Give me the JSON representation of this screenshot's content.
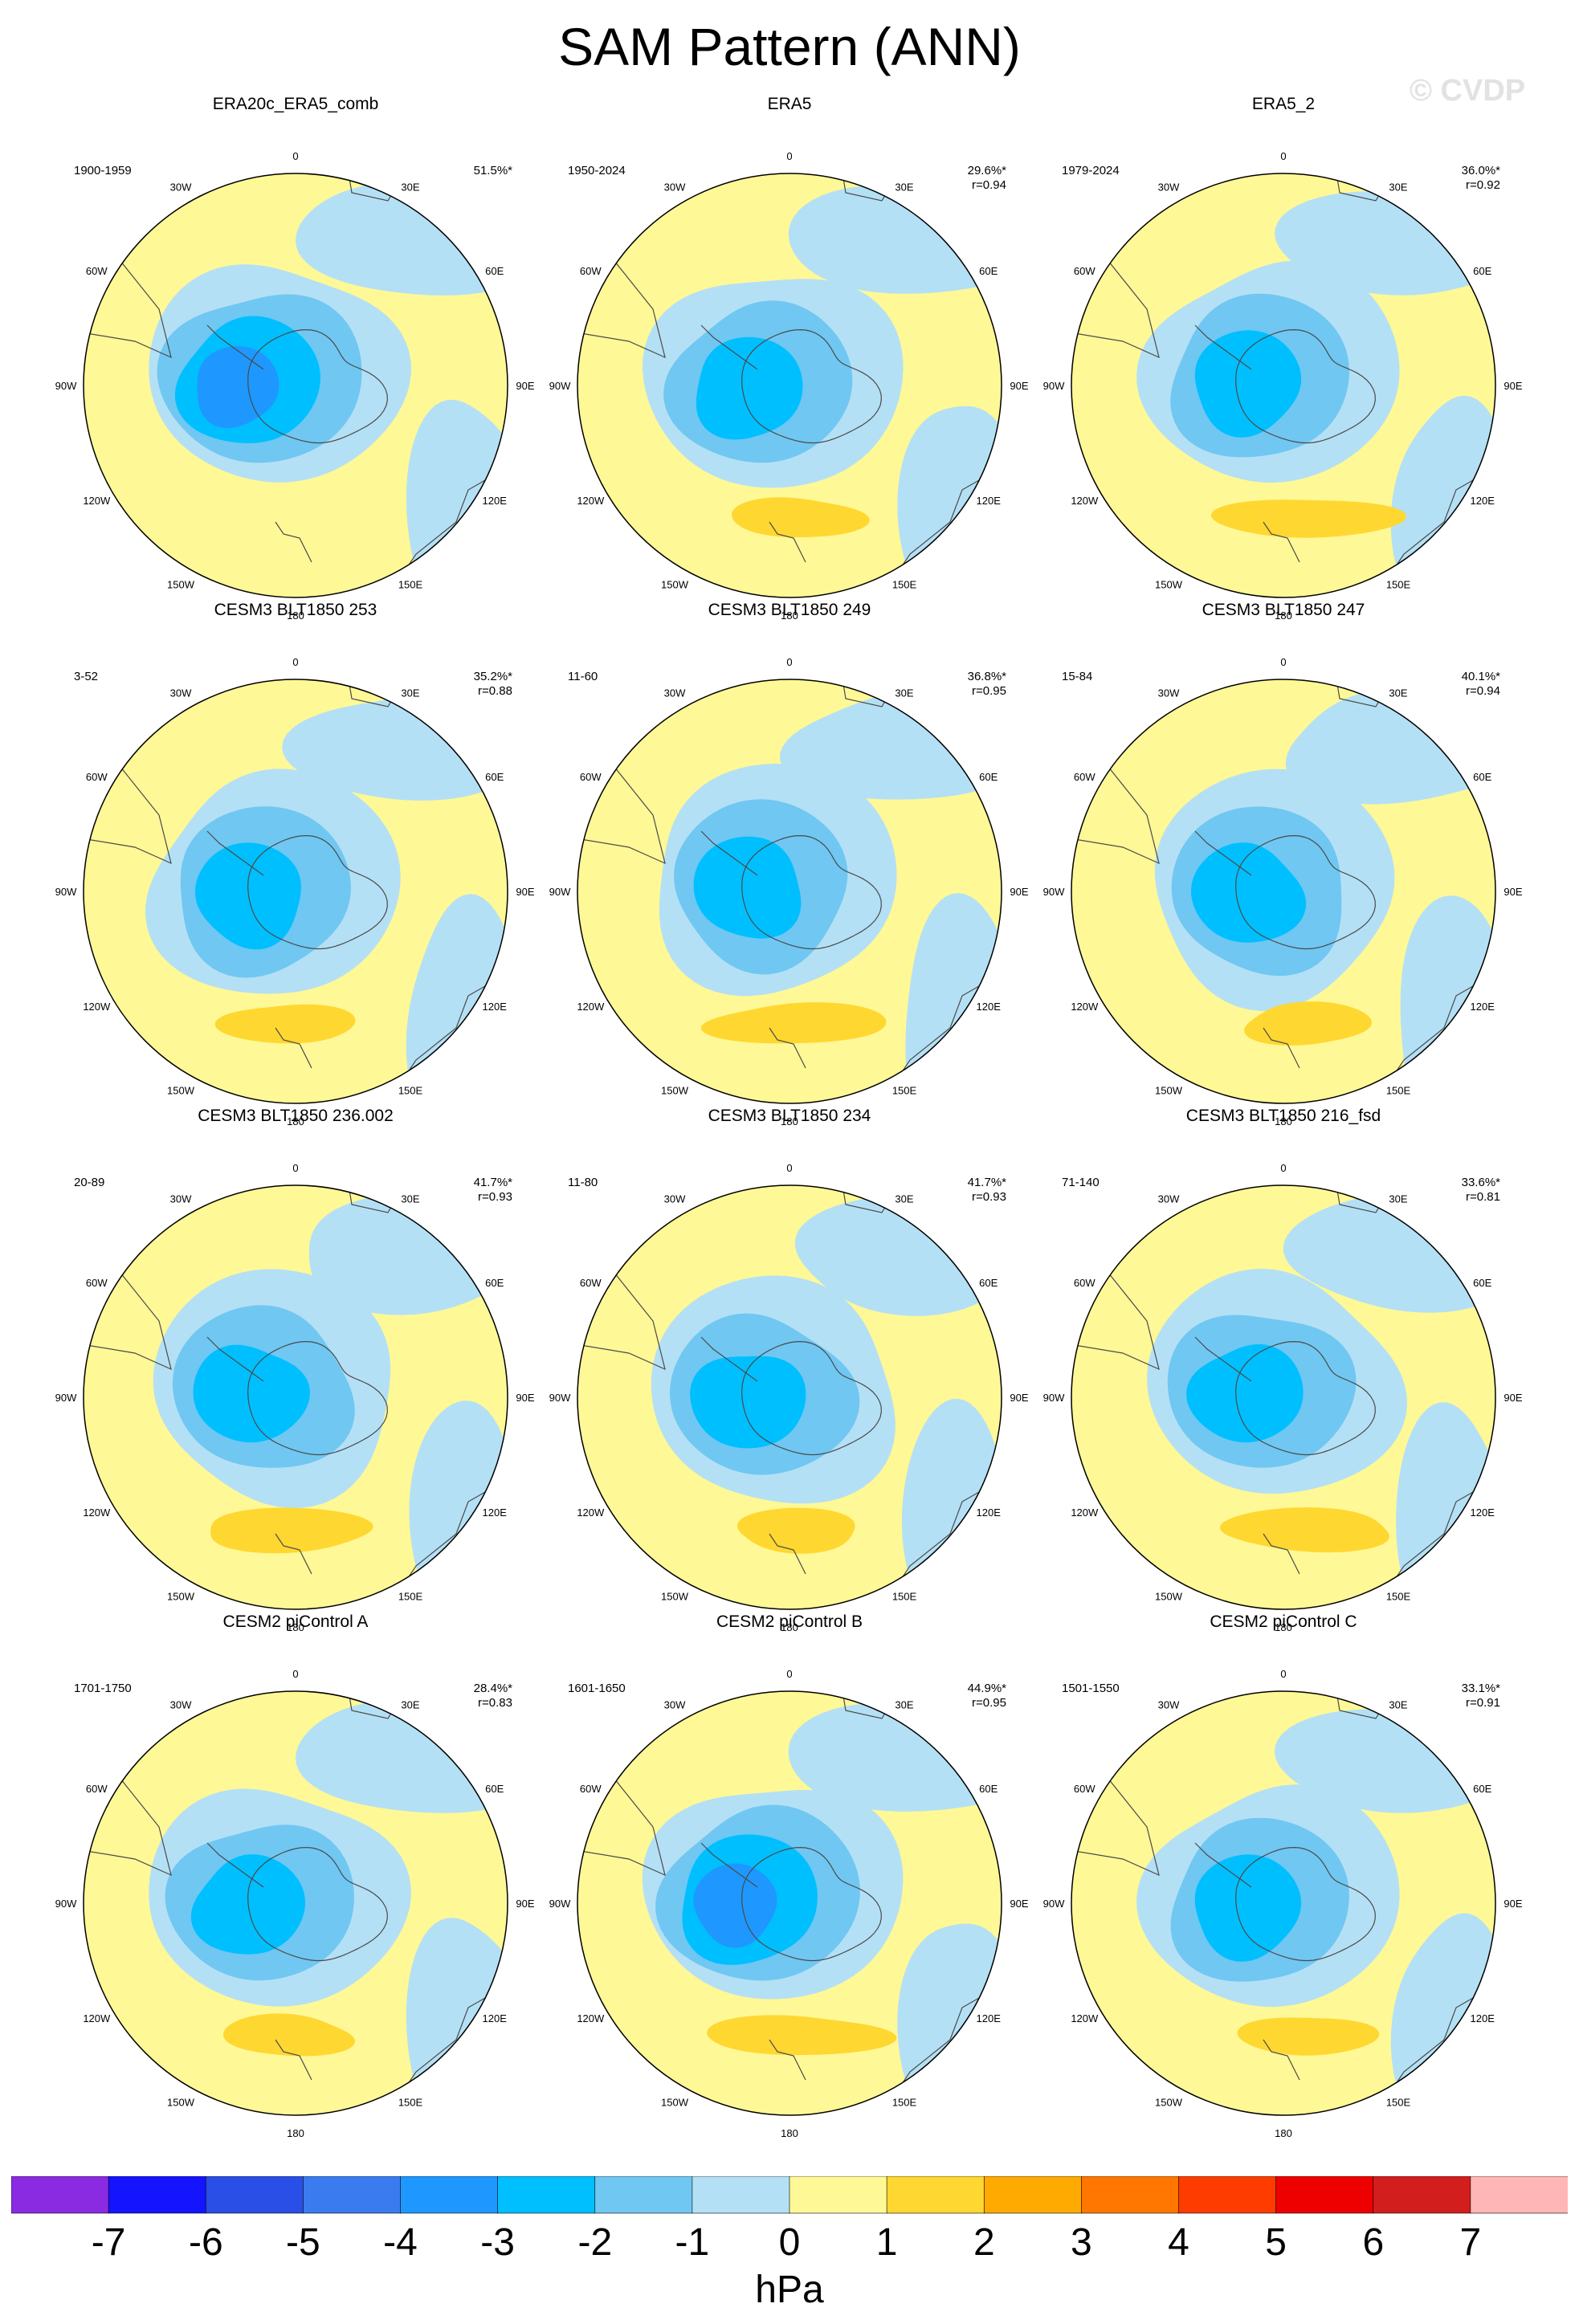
{
  "figure": {
    "title": "SAM Pattern (ANN)",
    "watermark": "© CVDP",
    "units": "hPa"
  },
  "colors": {
    "land_line": "#4a4a4a",
    "levels": [
      "#8a2be2",
      "#1414ff",
      "#2a4fe6",
      "#3b7bf0",
      "#1e98ff",
      "#00bfff",
      "#70c7f2",
      "#b4e0f5",
      "#fff896",
      "#ffd731",
      "#ffaa00",
      "#ff7700",
      "#ff3c00",
      "#ee0000",
      "#d31e1e",
      "#ffb6b6"
    ]
  },
  "chart_data": {
    "type": "contour_maps",
    "projection": "south polar stereographic",
    "lon_labels": [
      "0",
      "30E",
      "60E",
      "90E",
      "120E",
      "150E",
      "180",
      "150W",
      "120W",
      "90W",
      "60W",
      "30W"
    ],
    "colorbar": {
      "ticks": [
        "-7",
        "-6",
        "-5",
        "-4",
        "-3",
        "-2",
        "-1",
        "0",
        "1",
        "2",
        "3",
        "4",
        "5",
        "6",
        "7"
      ],
      "label": "hPa"
    },
    "panels": [
      {
        "title": "ERA20c_ERA5_comb",
        "period": "1900-1959",
        "pct_var": "51.5%*",
        "r": "",
        "min_level": -4,
        "max_level": 0
      },
      {
        "title": "ERA5",
        "period": "1950-2024",
        "pct_var": "29.6%*",
        "r": "r=0.94",
        "min_level": -3,
        "max_level": 1
      },
      {
        "title": "ERA5_2",
        "period": "1979-2024",
        "pct_var": "36.0%*",
        "r": "r=0.92",
        "min_level": -3,
        "max_level": 1
      },
      {
        "title": "CESM3 BLT1850 253",
        "period": "3-52",
        "pct_var": "35.2%*",
        "r": "r=0.88",
        "min_level": -3,
        "max_level": 1
      },
      {
        "title": "CESM3 BLT1850 249",
        "period": "11-60",
        "pct_var": "36.8%*",
        "r": "r=0.95",
        "min_level": -3,
        "max_level": 1
      },
      {
        "title": "CESM3 BLT1850 247",
        "period": "15-84",
        "pct_var": "40.1%*",
        "r": "r=0.94",
        "min_level": -3,
        "max_level": 1
      },
      {
        "title": "CESM3 BLT1850 236.002",
        "period": "20-89",
        "pct_var": "41.7%*",
        "r": "r=0.93",
        "min_level": -3,
        "max_level": 1
      },
      {
        "title": "CESM3 BLT1850 234",
        "period": "11-80",
        "pct_var": "41.7%*",
        "r": "r=0.93",
        "min_level": -3,
        "max_level": 1
      },
      {
        "title": "CESM3 BLT1850 216_fsd",
        "period": "71-140",
        "pct_var": "33.6%*",
        "r": "r=0.81",
        "min_level": -3,
        "max_level": 1
      },
      {
        "title": "CESM2 piControl A",
        "period": "1701-1750",
        "pct_var": "28.4%*",
        "r": "r=0.83",
        "min_level": -3,
        "max_level": 1
      },
      {
        "title": "CESM2 piControl B",
        "period": "1601-1650",
        "pct_var": "44.9%*",
        "r": "r=0.95",
        "min_level": -4,
        "max_level": 1
      },
      {
        "title": "CESM2 piControl C",
        "period": "1501-1550",
        "pct_var": "33.1%*",
        "r": "r=0.91",
        "min_level": -3,
        "max_level": 1
      }
    ]
  }
}
